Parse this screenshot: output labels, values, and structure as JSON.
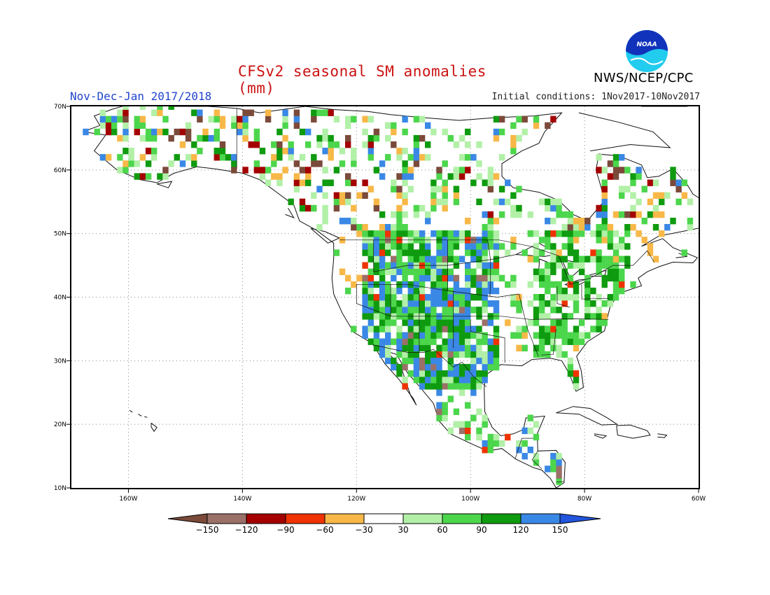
{
  "header": {
    "title": "CFSv2 seasonal SM anomalies (mm)",
    "season": "Nov-Dec-Jan 2017/2018",
    "initial_conditions": "Initial conditions: 1Nov2017-10Nov2017",
    "agency": "NWS/NCEP/CPC",
    "logo_text": "NOAA"
  },
  "map": {
    "lon_labels": [
      "160W",
      "140W",
      "120W",
      "100W",
      "80W",
      "60W"
    ],
    "lat_labels": [
      "70N",
      "60N",
      "50N",
      "40N",
      "30N",
      "20N",
      "10N"
    ],
    "lon_range": [
      -170,
      -60
    ],
    "lat_range": [
      10,
      70
    ]
  },
  "legend": {
    "labels": [
      "-150",
      "-120",
      "-90",
      "-60",
      "-30",
      "30",
      "60",
      "90",
      "120",
      "150"
    ],
    "colors": [
      "#7b4a3a",
      "#9a7068",
      "#a40000",
      "#ee3300",
      "#f8b848",
      "#ffffff",
      "#b2f0a8",
      "#4cd64c",
      "#0f9b0f",
      "#3a88e6",
      "#2255dd"
    ]
  },
  "colors": {
    "title": "#cc1111",
    "season": "#2244cc",
    "noaa_blue": "#1133bb",
    "noaa_cyan": "#22ccee"
  }
}
